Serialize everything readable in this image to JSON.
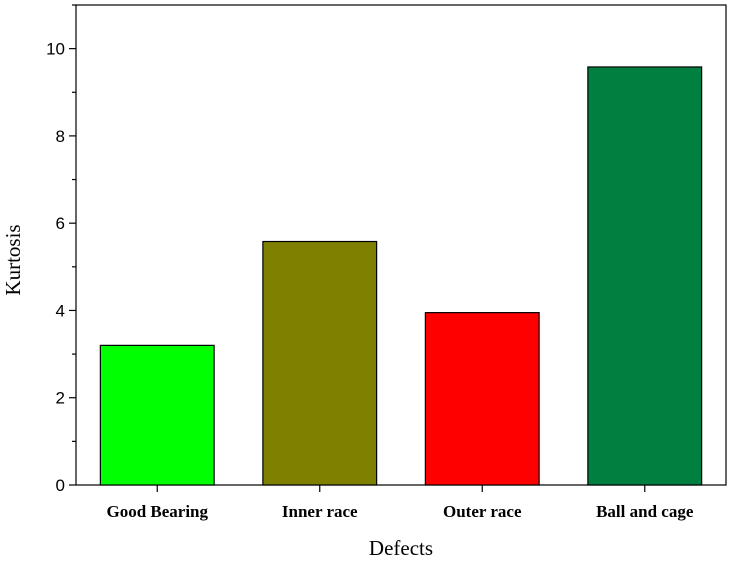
{
  "chart_data": {
    "type": "bar",
    "categories": [
      "Good Bearing",
      "Inner race",
      "Outer race",
      "Ball and cage"
    ],
    "values": [
      3.2,
      5.58,
      3.95,
      9.58
    ],
    "bar_colors": [
      "#00ff00",
      "#808000",
      "#ff0000",
      "#008040"
    ],
    "xlabel": "Defects",
    "ylabel": "Kurtosis",
    "ylim": [
      0,
      11
    ],
    "yticks": [
      0,
      2,
      4,
      6,
      8,
      10
    ],
    "grid": false,
    "legend": "none"
  }
}
